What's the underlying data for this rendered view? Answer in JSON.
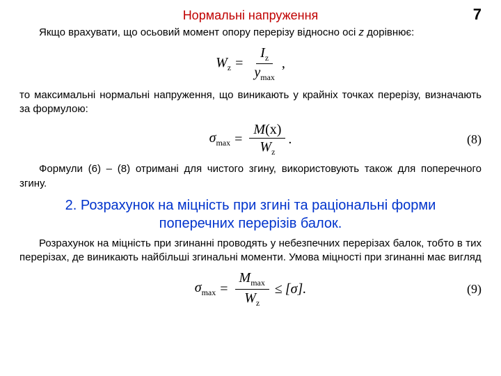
{
  "page_number": "7",
  "header": "Нормальні напруження",
  "para1": "Якщо врахувати, що осьовий момент опору перерізу відносно осі z дорівнює:",
  "formula1": {
    "lhs_var": "W",
    "lhs_sub": "z",
    "num_var": "I",
    "num_sub": "z",
    "den_var": "y",
    "den_sub": "max",
    "trail": ","
  },
  "para2": "то максимальні нормальні напруження, що виникають у крайніх точках перерізу, визначають за формулою:",
  "formula2": {
    "lhs_var": "σ",
    "lhs_sub": "max",
    "num_var": "M",
    "num_arg": "(x)",
    "den_var": "W",
    "den_sub": "z",
    "trail": ".",
    "label": "(8)"
  },
  "para3": "Формули (6) – (8) отримані для чистого згину, використовують також для поперечного згину.",
  "section_title_line1": "2. Розрахунок на міцність при згині та раціональні форми",
  "section_title_line2": "поперечних перерізів балок.",
  "para4": "Розрахунок на міцність при згинанні проводять у небезпечних перерізах балок, тобто в тих перерізах, де виникають найбільші згинальні моменти. Умова міцності при згинанні має вигляд",
  "formula3": {
    "lhs_var": "σ",
    "lhs_sub": "max",
    "num_var": "M",
    "num_sub": "max",
    "den_var": "W",
    "den_sub": "z",
    "cond_lhs": "≤",
    "cond_rhs": "[σ].",
    "label": "(9)"
  },
  "italic_z": "z"
}
